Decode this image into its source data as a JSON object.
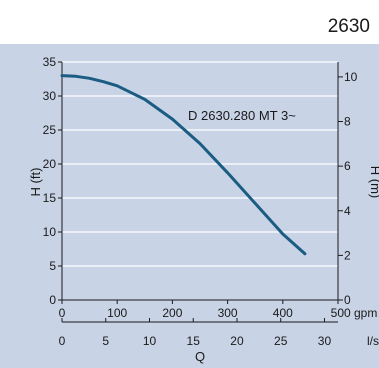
{
  "header": {
    "title": "2630"
  },
  "chart_data": {
    "type": "line",
    "title": "",
    "series": [
      {
        "name": "D 2630.280 MT 3~",
        "x_gpm": [
          0,
          25,
          50,
          75,
          100,
          150,
          200,
          250,
          300,
          350,
          400,
          440
        ],
        "y_ft": [
          33.0,
          32.9,
          32.6,
          32.1,
          31.5,
          29.5,
          26.6,
          23.0,
          18.7,
          14.2,
          9.7,
          6.8
        ]
      }
    ],
    "primary_x": {
      "label": "",
      "unit": "gpm",
      "ticks": [
        0,
        100,
        200,
        300,
        400,
        500
      ],
      "range": [
        0,
        500
      ]
    },
    "secondary_x": {
      "label": "Q",
      "unit": "l/s",
      "ticks": [
        0,
        5,
        10,
        15,
        20,
        25,
        30
      ]
    },
    "left_y": {
      "label": "H (ft)",
      "ticks": [
        0,
        5,
        10,
        15,
        20,
        25,
        30,
        35
      ],
      "range": [
        0,
        35
      ]
    },
    "right_y": {
      "label": "H (m)",
      "ticks": [
        0,
        2,
        4,
        6,
        8,
        10
      ]
    },
    "grid": "horizontal",
    "colors": {
      "plot_background": "#c8d3e6",
      "curve": "#1b5c82",
      "grid": "#ffffff"
    }
  }
}
